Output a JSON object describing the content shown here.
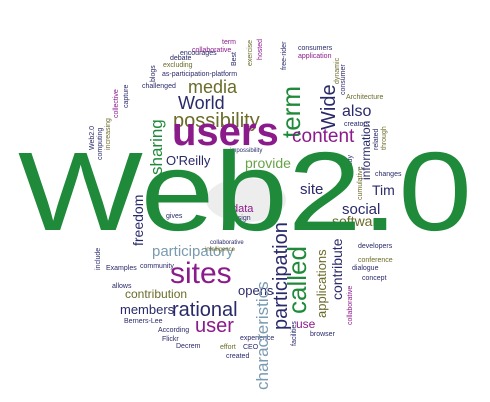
{
  "headline": {
    "text": "Web2.0",
    "color": "#1f8a3a"
  },
  "colors": {
    "green": "#1f8a3a",
    "purple": "#8b1a8b",
    "navy": "#2a2a6a",
    "olive": "#6b6b2a",
    "lightgreen": "#6aa24a",
    "teal": "#2a8a8a",
    "gray": "#707070",
    "steel": "#7a9ab0"
  },
  "words": [
    "collaborative",
    "debate",
    "excluding",
    "encourages",
    "term",
    "Best",
    "exercise",
    "hosted",
    "free-rider",
    "consumers",
    "application",
    "as-participation-platform",
    "dynamic",
    "media",
    "consumer",
    "challenged",
    "blogs",
    "capture",
    "collective",
    "increasing",
    "computing",
    "World",
    "possibility",
    "Wide",
    "also",
    "Architecture",
    "creators",
    "users",
    "content",
    "information",
    "related",
    "through",
    "changes",
    "sharing",
    "O'Reilly",
    "provide",
    "impossibility",
    "cumulative",
    "already",
    "Tim",
    "site",
    "social",
    "software",
    "freedom",
    "data",
    "design",
    "gives",
    "participatory",
    "collaborative",
    "intelligence",
    "sites",
    "called",
    "participation",
    "contribute",
    "applications",
    "developers",
    "conference",
    "dialogue",
    "concept",
    "include",
    "Examples",
    "community",
    "allows",
    "contribution",
    "members",
    "Berners-Lee",
    "intended",
    "rational",
    "opens",
    "user",
    "According",
    "Flickr",
    "Decrem",
    "effort",
    "CEO",
    "experience",
    "created",
    "browser",
    "facilities",
    "use",
    "characteristics",
    "identity",
    "library",
    "attributes",
    "goods",
    "Web2.0"
  ]
}
